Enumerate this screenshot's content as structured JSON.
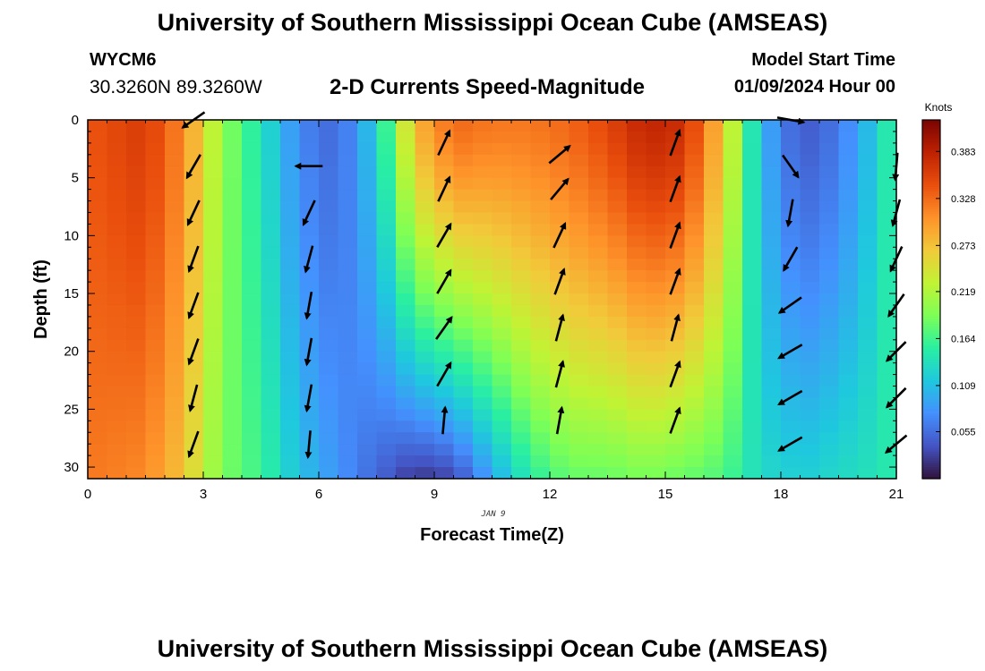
{
  "header": {
    "title": "University of Southern Mississippi Ocean Cube (AMSEAS)",
    "station": "WYCM6",
    "coordinates": "30.3260N  89.3260W",
    "subtitle": "2-D Currents Speed-Magnitude",
    "model_start_label": "Model Start Time",
    "model_start_value": "01/09/2024 Hour 00"
  },
  "footer": {
    "title": "University of Southern Mississippi Ocean Cube (AMSEAS)"
  },
  "colors": {
    "colormap": [
      "#30123b",
      "#4454c4",
      "#4490fe",
      "#1fc8de",
      "#29efa2",
      "#7dff56",
      "#c1f334",
      "#f1ca3a",
      "#fe922a",
      "#ea4f0d",
      "#be2102",
      "#7a0403"
    ]
  },
  "chart_data": {
    "type": "heatmap",
    "xlabel": "Forecast Time(Z)",
    "ylabel": "Depth (ft)",
    "date_label": "JAN 9",
    "colorbar_unit": "Knots",
    "xlim": [
      0,
      21
    ],
    "ylim": [
      0,
      31
    ],
    "x_ticks": [
      0,
      3,
      6,
      9,
      12,
      15,
      18,
      21
    ],
    "y_ticks": [
      0,
      5,
      10,
      15,
      20,
      25,
      30
    ],
    "colorbar_ticks": [
      0.055,
      0.109,
      0.164,
      0.219,
      0.273,
      0.328,
      0.383
    ],
    "colorbar_range": [
      0.0,
      0.42
    ],
    "speed_profiles": [
      {
        "x": 0.0,
        "surface": 0.34,
        "deep": 0.32
      },
      {
        "x": 1.5,
        "surface": 0.36,
        "deep": 0.31
      },
      {
        "x": 2.5,
        "surface": 0.31,
        "deep": 0.27
      },
      {
        "x": 3.5,
        "surface": 0.2,
        "deep": 0.19
      },
      {
        "x": 4.5,
        "surface": 0.14,
        "deep": 0.16
      },
      {
        "x": 5.5,
        "surface": 0.07,
        "deep": 0.11
      },
      {
        "x": 6.5,
        "surface": 0.05,
        "deep": 0.08
      },
      {
        "x": 7.5,
        "surface": 0.12,
        "deep": 0.05
      },
      {
        "x": 8.5,
        "surface": 0.28,
        "deep": 0.02
      },
      {
        "x": 9.5,
        "surface": 0.33,
        "deep": 0.03
      },
      {
        "x": 10.5,
        "surface": 0.32,
        "deep": 0.09
      },
      {
        "x": 11.5,
        "surface": 0.32,
        "deep": 0.15
      },
      {
        "x": 12.5,
        "surface": 0.33,
        "deep": 0.18
      },
      {
        "x": 13.5,
        "surface": 0.35,
        "deep": 0.18
      },
      {
        "x": 14.5,
        "surface": 0.38,
        "deep": 0.19
      },
      {
        "x": 15.5,
        "surface": 0.37,
        "deep": 0.18
      },
      {
        "x": 16.5,
        "surface": 0.27,
        "deep": 0.17
      },
      {
        "x": 17.5,
        "surface": 0.1,
        "deep": 0.13
      },
      {
        "x": 18.5,
        "surface": 0.04,
        "deep": 0.12
      },
      {
        "x": 19.5,
        "surface": 0.06,
        "deep": 0.13
      },
      {
        "x": 20.5,
        "surface": 0.12,
        "deep": 0.14
      },
      {
        "x": 21.0,
        "surface": 0.17,
        "deep": 0.15
      }
    ],
    "vectors": [
      {
        "x": 2.75,
        "depth": 0,
        "dir": 235
      },
      {
        "x": 2.75,
        "depth": 4,
        "dir": 210
      },
      {
        "x": 2.75,
        "depth": 8,
        "dir": 205
      },
      {
        "x": 2.75,
        "depth": 12,
        "dir": 200
      },
      {
        "x": 2.75,
        "depth": 16,
        "dir": 200
      },
      {
        "x": 2.75,
        "depth": 20,
        "dir": 200
      },
      {
        "x": 2.75,
        "depth": 24,
        "dir": 195
      },
      {
        "x": 2.75,
        "depth": 28,
        "dir": 200
      },
      {
        "x": 5.75,
        "depth": 4,
        "dir": 270
      },
      {
        "x": 5.75,
        "depth": 8,
        "dir": 205
      },
      {
        "x": 5.75,
        "depth": 12,
        "dir": 195
      },
      {
        "x": 5.75,
        "depth": 16,
        "dir": 190
      },
      {
        "x": 5.75,
        "depth": 20,
        "dir": 190
      },
      {
        "x": 5.75,
        "depth": 24,
        "dir": 190
      },
      {
        "x": 5.75,
        "depth": 28,
        "dir": 185
      },
      {
        "x": 9.25,
        "depth": 2,
        "dir": 25
      },
      {
        "x": 9.25,
        "depth": 6,
        "dir": 25
      },
      {
        "x": 9.25,
        "depth": 10,
        "dir": 30
      },
      {
        "x": 9.25,
        "depth": 14,
        "dir": 30
      },
      {
        "x": 9.25,
        "depth": 18,
        "dir": 35
      },
      {
        "x": 9.25,
        "depth": 22,
        "dir": 30
      },
      {
        "x": 9.25,
        "depth": 26,
        "dir": 5
      },
      {
        "x": 12.25,
        "depth": 3,
        "dir": 50
      },
      {
        "x": 12.25,
        "depth": 6,
        "dir": 40
      },
      {
        "x": 12.25,
        "depth": 10,
        "dir": 25
      },
      {
        "x": 12.25,
        "depth": 14,
        "dir": 20
      },
      {
        "x": 12.25,
        "depth": 18,
        "dir": 15
      },
      {
        "x": 12.25,
        "depth": 22,
        "dir": 15
      },
      {
        "x": 12.25,
        "depth": 26,
        "dir": 10
      },
      {
        "x": 15.25,
        "depth": 2,
        "dir": 20
      },
      {
        "x": 15.25,
        "depth": 6,
        "dir": 20
      },
      {
        "x": 15.25,
        "depth": 10,
        "dir": 20
      },
      {
        "x": 15.25,
        "depth": 14,
        "dir": 20
      },
      {
        "x": 15.25,
        "depth": 18,
        "dir": 15
      },
      {
        "x": 15.25,
        "depth": 22,
        "dir": 20
      },
      {
        "x": 15.25,
        "depth": 26,
        "dir": 20
      },
      {
        "x": 18.25,
        "depth": 0,
        "dir": 100
      },
      {
        "x": 18.25,
        "depth": 4,
        "dir": 145
      },
      {
        "x": 18.25,
        "depth": 8,
        "dir": 190
      },
      {
        "x": 18.25,
        "depth": 12,
        "dir": 210
      },
      {
        "x": 18.25,
        "depth": 16,
        "dir": 235
      },
      {
        "x": 18.25,
        "depth": 20,
        "dir": 240
      },
      {
        "x": 18.25,
        "depth": 24,
        "dir": 240
      },
      {
        "x": 18.25,
        "depth": 28,
        "dir": 240
      },
      {
        "x": 21.0,
        "depth": 4,
        "dir": 185
      },
      {
        "x": 21.0,
        "depth": 8,
        "dir": 195
      },
      {
        "x": 21.0,
        "depth": 12,
        "dir": 205
      },
      {
        "x": 21.0,
        "depth": 16,
        "dir": 215
      },
      {
        "x": 21.0,
        "depth": 20,
        "dir": 225
      },
      {
        "x": 21.0,
        "depth": 24,
        "dir": 225
      },
      {
        "x": 21.0,
        "depth": 28,
        "dir": 230
      }
    ]
  }
}
